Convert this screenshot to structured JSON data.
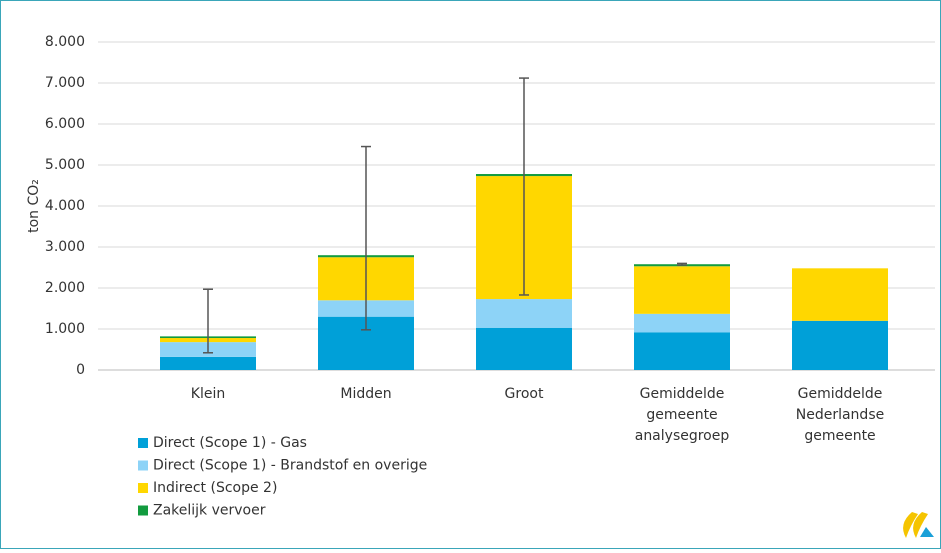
{
  "chart_data": {
    "type": "stacked_bar",
    "y_label": "ton CO₂",
    "categories": [
      "Klein",
      "Midden",
      "Groot",
      "Gemiddelde gemeente analysegroep",
      "Gemiddelde Nederlandse gemeente"
    ],
    "series": [
      {
        "name": "Direct (Scope 1) - Gas",
        "color": "#00a0d8",
        "values": [
          320,
          1300,
          1030,
          920,
          1200
        ]
      },
      {
        "name": "Direct (Scope 1) - Brandstof en overige",
        "color": "#8dd3f7",
        "values": [
          360,
          400,
          700,
          450,
          0
        ]
      },
      {
        "name": "Indirect (Scope 2)",
        "color": "#ffd700",
        "values": [
          100,
          1050,
          3000,
          1160,
          1280
        ]
      },
      {
        "name": "Zakelijk vervoer",
        "color": "#129b3f",
        "values": [
          40,
          50,
          50,
          50,
          0
        ]
      }
    ],
    "error_low": [
      420,
      980,
      1830,
      2560,
      null
    ],
    "error_high": [
      1970,
      5450,
      7120,
      2600,
      null
    ],
    "ylim": [
      0,
      8000
    ],
    "yticks": [
      0,
      {
        "value": 1000,
        "label": "1.000"
      },
      {
        "value": 2000,
        "label": "2.000"
      },
      {
        "value": 3000,
        "label": "3.000"
      },
      {
        "value": 4000,
        "label": "4.000"
      },
      {
        "value": 5000,
        "label": "5.000"
      },
      {
        "value": 6000,
        "label": "6.000"
      },
      {
        "value": 7000,
        "label": "7.000"
      },
      {
        "value": 8000,
        "label": "8.000"
      }
    ],
    "grid": true
  }
}
